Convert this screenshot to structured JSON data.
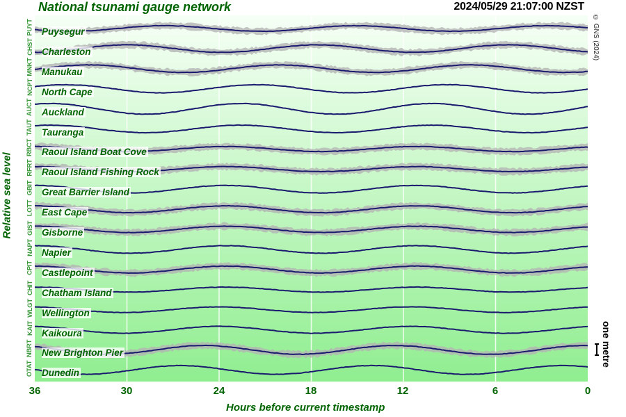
{
  "header": {
    "title": "National tsunami gauge network",
    "timestamp": "2024/05/29 21:07:00 NZST",
    "copyright": "© GNS (2024)"
  },
  "axes": {
    "ylabel": "Relative sea level",
    "xlabel": "Hours before current timestamp",
    "xticks": [
      "36",
      "30",
      "24",
      "18",
      "12",
      "6",
      "0"
    ],
    "scale_label": "one metre"
  },
  "colors": {
    "trace": "#1a1a6e",
    "noise": "#b4b4b4",
    "text_green": "#006400",
    "code_green": "#3c9a3c",
    "bg_top": "#f6fff6",
    "bg_bottom": "#90ee90",
    "grid": "#ffffff"
  },
  "stations": [
    {
      "code": "PUYT",
      "name": "Puysegur"
    },
    {
      "code": "CHST",
      "name": "Charleston"
    },
    {
      "code": "MNKT",
      "name": "Manukau"
    },
    {
      "code": "NCPT",
      "name": "North Cape"
    },
    {
      "code": "AUCT",
      "name": "Auckland"
    },
    {
      "code": "TAUT",
      "name": "Tauranga"
    },
    {
      "code": "RBCT",
      "name": "Raoul Island Boat Cove"
    },
    {
      "code": "RFRT",
      "name": "Raoul Island Fishing Rock"
    },
    {
      "code": "GBIT",
      "name": "Great Barrier Island"
    },
    {
      "code": "LOTT",
      "name": "East Cape"
    },
    {
      "code": "GIST",
      "name": "Gisborne"
    },
    {
      "code": "NAPT",
      "name": "Napier"
    },
    {
      "code": "CPIT",
      "name": "Castlepoint"
    },
    {
      "code": "CHIT",
      "name": "Chatham Island"
    },
    {
      "code": "WLGT",
      "name": "Wellington"
    },
    {
      "code": "KAIT",
      "name": "Kaikoura"
    },
    {
      "code": "NBRT",
      "name": "New Brighton Pier"
    },
    {
      "code": "OTAT",
      "name": "Dunedin"
    }
  ],
  "chart_data": {
    "type": "line",
    "title": "National tsunami gauge network",
    "subtitle": "2024/05/29 21:07:00 NZST",
    "xlabel": "Hours before current timestamp",
    "ylabel": "Relative sea level",
    "x_range": [
      36,
      0
    ],
    "x_ticks": [
      36,
      30,
      24,
      18,
      12,
      6,
      0
    ],
    "grid": "vertical at 30, 24, 18, 12, 6",
    "scale_bar": "one metre",
    "note": "Stacked tidal sea-level traces (approx. semi-diurnal, period ~12.4 h). Values are approximate relative levels in metres (peak-to-trough amplitude and hours-before of a representative high tide).",
    "series": [
      {
        "name": "Puysegur",
        "code": "PUYT",
        "amplitude_m": 0.9,
        "high_tide_hours": [
          27.5,
          15.5,
          3.5
        ],
        "noise": true
      },
      {
        "name": "Charleston",
        "code": "CHST",
        "amplitude_m": 1.2,
        "high_tide_hours": [
          30,
          17.5,
          5.5
        ],
        "noise": true
      },
      {
        "name": "Manukau",
        "code": "MNKT",
        "amplitude_m": 1.2,
        "high_tide_hours": [
          32.5,
          20.5,
          8
        ],
        "noise": true
      },
      {
        "name": "North Cape",
        "code": "NCPT",
        "amplitude_m": 1.3,
        "high_tide_hours": [
          34,
          21.5,
          9.5
        ],
        "noise": false
      },
      {
        "name": "Auckland",
        "code": "AUCT",
        "amplitude_m": 1.7,
        "high_tide_hours": [
          35,
          22.5,
          10.5
        ],
        "noise": false
      },
      {
        "name": "Tauranga",
        "code": "TAUT",
        "amplitude_m": 1.2,
        "high_tide_hours": [
          35,
          22.5,
          10.5
        ],
        "noise": false
      },
      {
        "name": "Raoul Island Boat Cove",
        "code": "RBCT",
        "amplitude_m": 0.8,
        "high_tide_hours": [
          36,
          23.5,
          11
        ],
        "noise": true
      },
      {
        "name": "Raoul Island Fishing Rock",
        "code": "RFRT",
        "amplitude_m": 0.8,
        "high_tide_hours": [
          36,
          23.5,
          11
        ],
        "noise": true
      },
      {
        "name": "Great Barrier Island",
        "code": "GBIT",
        "amplitude_m": 1.2,
        "high_tide_hours": [
          36,
          23.5,
          11
        ],
        "noise": false
      },
      {
        "name": "East Cape",
        "code": "LOTT",
        "amplitude_m": 1.1,
        "high_tide_hours": [
          36,
          23.5,
          11
        ],
        "noise": true
      },
      {
        "name": "Gisborne",
        "code": "GIST",
        "amplitude_m": 1.0,
        "high_tide_hours": [
          36,
          24,
          11.5
        ],
        "noise": true
      },
      {
        "name": "Napier",
        "code": "NAPT",
        "amplitude_m": 1.2,
        "high_tide_hours": [
          36,
          24,
          12
        ],
        "noise": false
      },
      {
        "name": "Castlepoint",
        "code": "CPIT",
        "amplitude_m": 1.1,
        "high_tide_hours": [
          36,
          24,
          12
        ],
        "noise": true
      },
      {
        "name": "Chatham Island",
        "code": "CHIT",
        "amplitude_m": 0.8,
        "high_tide_hours": [
          36,
          24,
          12
        ],
        "noise": false
      },
      {
        "name": "Wellington",
        "code": "WLGT",
        "amplitude_m": 0.9,
        "high_tide_hours": [
          24,
          12,
          0
        ],
        "noise": false
      },
      {
        "name": "Kaikoura",
        "code": "KAIT",
        "amplitude_m": 1.1,
        "high_tide_hours": [
          24,
          12,
          0
        ],
        "noise": false
      },
      {
        "name": "New Brighton Pier",
        "code": "NBRT",
        "amplitude_m": 1.4,
        "high_tide_hours": [
          25,
          13,
          1
        ],
        "noise": true
      },
      {
        "name": "Dunedin",
        "code": "OTAT",
        "amplitude_m": 1.4,
        "high_tide_hours": [
          26.5,
          14,
          1.5
        ],
        "noise": false
      }
    ]
  }
}
